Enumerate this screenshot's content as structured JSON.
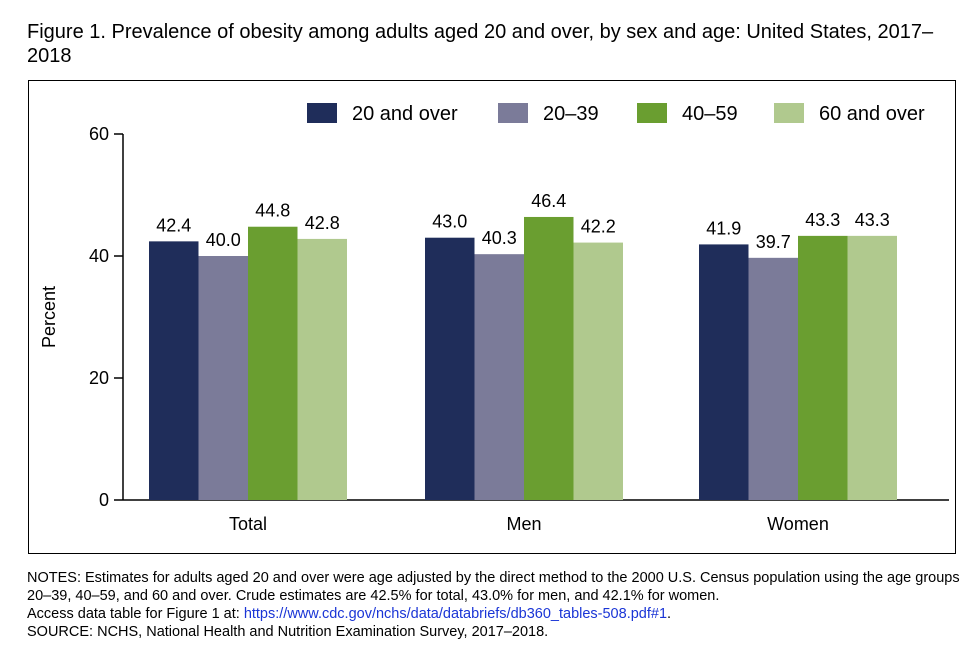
{
  "figure": {
    "title": "Figure 1. Prevalence of obesity among adults aged 20 and over, by sex and age: United States, 2017–2018"
  },
  "notes": {
    "line1": "NOTES: Estimates for adults aged 20 and over were age adjusted by the direct method to the 2000 U.S. Census population using the age groups 20–39, 40–59, and 60 and over. Crude estimates are 42.5% for total, 43.0% for men, and 42.1% for women.",
    "line2_prefix": "Access data table for Figure 1 at: ",
    "link": "https://www.cdc.gov/nchs/data/databriefs/db360_tables-508.pdf#1",
    "line2_suffix": ".",
    "source": "SOURCE: NCHS, National Health and Nutrition Examination Survey, 2017–2018."
  },
  "chart_data": {
    "type": "bar",
    "categories": [
      "Total",
      "Men",
      "Women"
    ],
    "series": [
      {
        "name": "20 and over",
        "values": [
          42.4,
          43.0,
          41.9
        ],
        "labels": [
          "42.4",
          "43.0",
          "41.9"
        ],
        "color": "#1f2d5a"
      },
      {
        "name": "20–39",
        "values": [
          40.0,
          40.3,
          39.7
        ],
        "labels": [
          "40.0",
          "40.3",
          "39.7"
        ],
        "color": "#7b7b99"
      },
      {
        "name": "40–59",
        "values": [
          44.8,
          46.4,
          43.3
        ],
        "labels": [
          "44.8",
          "46.4",
          "43.3"
        ],
        "color": "#6a9e30"
      },
      {
        "name": "60 and over",
        "values": [
          42.8,
          42.2,
          43.3
        ],
        "labels": [
          "42.8",
          "42.2",
          "43.3"
        ],
        "color": "#b0c98e"
      }
    ],
    "ylabel": "Percent",
    "xlabel": "",
    "ylim": [
      0,
      60
    ],
    "yticks": [
      0,
      20,
      40,
      60
    ],
    "legend_position": "top-right",
    "grid": false
  }
}
